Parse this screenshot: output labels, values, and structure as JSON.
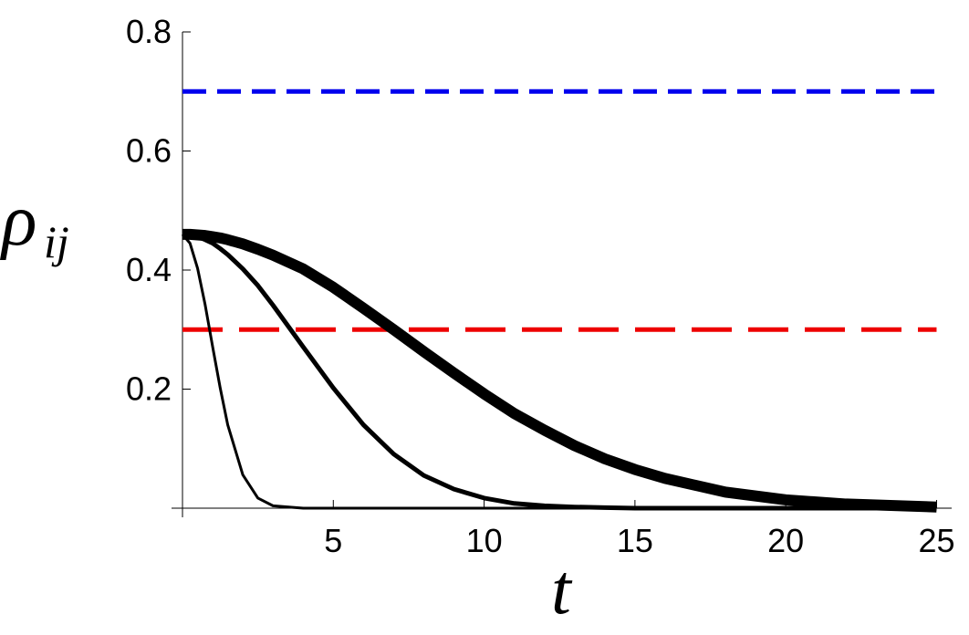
{
  "chart_data": {
    "type": "line",
    "xlabel": "t",
    "ylabel": "ρ",
    "ylabel_subscript": "ij",
    "xlim": [
      0,
      25.5
    ],
    "ylim": [
      0,
      0.8
    ],
    "xticks": [
      5,
      10,
      15,
      20,
      25
    ],
    "yticks": [
      0.2,
      0.4,
      0.6,
      0.8
    ],
    "series": [
      {
        "color": "#0000ee",
        "line_width": 5,
        "dash": "dashed",
        "x": [
          0,
          25
        ],
        "values": [
          0.7,
          0.7
        ]
      },
      {
        "color": "#ee0000",
        "line_width": 5,
        "dash": "long-dashed",
        "x": [
          0,
          25
        ],
        "values": [
          0.3,
          0.3
        ]
      },
      {
        "color": "#000000",
        "line_width": 3,
        "dash": "solid",
        "x": [
          0,
          0.25,
          0.5,
          0.75,
          1,
          1.25,
          1.5,
          2,
          2.5,
          3,
          4,
          5,
          6,
          7,
          8,
          9,
          10,
          11,
          12,
          13,
          14,
          15,
          16,
          18,
          20,
          22,
          25
        ],
        "values": [
          0.46,
          0.445,
          0.403,
          0.342,
          0.271,
          0.202,
          0.14,
          0.056,
          0.017,
          0.004,
          0,
          0,
          0,
          0,
          0,
          0,
          0,
          0,
          0,
          0,
          0,
          0,
          0,
          0,
          0,
          0,
          0
        ]
      },
      {
        "color": "#000000",
        "line_width": 5,
        "dash": "solid",
        "x": [
          0,
          0.25,
          0.5,
          0.75,
          1,
          1.25,
          1.5,
          2,
          2.5,
          3,
          4,
          5,
          6,
          7,
          8,
          9,
          10,
          11,
          12,
          13,
          14,
          15,
          16,
          18,
          20,
          22,
          25
        ],
        "values": [
          0.46,
          0.46,
          0.456,
          0.451,
          0.445,
          0.436,
          0.426,
          0.402,
          0.374,
          0.341,
          0.271,
          0.202,
          0.14,
          0.091,
          0.055,
          0.032,
          0.017,
          0.008,
          0.004,
          0.002,
          0.001,
          0,
          0,
          0,
          0,
          0,
          0
        ]
      },
      {
        "color": "#000000",
        "line_width": 12,
        "dash": "solid",
        "x": [
          0,
          0.25,
          0.5,
          0.75,
          1,
          1.25,
          1.5,
          2,
          2.5,
          3,
          4,
          5,
          6,
          7,
          8,
          9,
          10,
          11,
          12,
          13,
          14,
          15,
          16,
          18,
          20,
          22,
          25
        ],
        "values": [
          0.46,
          0.46,
          0.459,
          0.458,
          0.456,
          0.454,
          0.451,
          0.444,
          0.435,
          0.425,
          0.402,
          0.371,
          0.336,
          0.3,
          0.263,
          0.227,
          0.192,
          0.159,
          0.131,
          0.105,
          0.083,
          0.065,
          0.05,
          0.027,
          0.014,
          0.007,
          0.002
        ]
      }
    ]
  }
}
